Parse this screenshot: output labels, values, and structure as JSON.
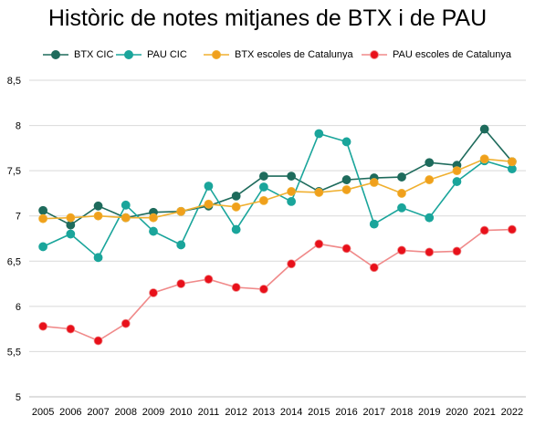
{
  "chart_data": {
    "type": "line",
    "title": "Històric de notes mitjanes de BTX i de PAU",
    "xlabel": "",
    "ylabel": "",
    "ylim": [
      5,
      8.5
    ],
    "yticks": [
      5,
      5.5,
      6,
      6.5,
      7,
      7.5,
      8,
      8.5
    ],
    "ytick_labels": [
      "5",
      "5,5",
      "6",
      "6,5",
      "7",
      "7,5",
      "8",
      "8,5"
    ],
    "grid": true,
    "legend_position": "top",
    "categories": [
      "2005",
      "2006",
      "2007",
      "2008",
      "2009",
      "2010",
      "2011",
      "2012",
      "2013",
      "2014",
      "2015",
      "2016",
      "2017",
      "2018",
      "2019",
      "2020",
      "2021",
      "2022"
    ],
    "series": [
      {
        "name": "BTX CIC",
        "color": "#1e6b5c",
        "marker_fill": "#1e6b5c",
        "values": [
          7.06,
          6.9,
          7.11,
          6.98,
          7.04,
          7.05,
          7.11,
          7.22,
          7.44,
          7.44,
          7.27,
          7.4,
          7.42,
          7.43,
          7.59,
          7.56,
          7.96,
          7.6
        ]
      },
      {
        "name": "PAU CIC",
        "color": "#1aa59b",
        "marker_fill": "#1aa59b",
        "values": [
          6.66,
          6.8,
          6.54,
          7.12,
          6.83,
          6.68,
          7.33,
          6.85,
          7.32,
          7.16,
          7.91,
          7.82,
          6.91,
          7.09,
          6.98,
          7.38,
          7.61,
          7.52
        ]
      },
      {
        "name": "BTX escoles de Catalunya",
        "color": "#f0b030",
        "marker_fill": "#f0a01c",
        "values": [
          6.97,
          6.98,
          7.0,
          6.98,
          6.98,
          7.05,
          7.13,
          7.1,
          7.17,
          7.27,
          7.26,
          7.29,
          7.37,
          7.25,
          7.4,
          7.5,
          7.63,
          7.6
        ]
      },
      {
        "name": "PAU escoles de Catalunya",
        "color": "#f08a8a",
        "marker_fill": "#e8101a",
        "values": [
          5.78,
          5.75,
          5.62,
          5.81,
          6.15,
          6.25,
          6.3,
          6.21,
          6.19,
          6.47,
          6.69,
          6.64,
          6.43,
          6.62,
          6.6,
          6.61,
          6.84,
          6.85
        ]
      }
    ]
  }
}
